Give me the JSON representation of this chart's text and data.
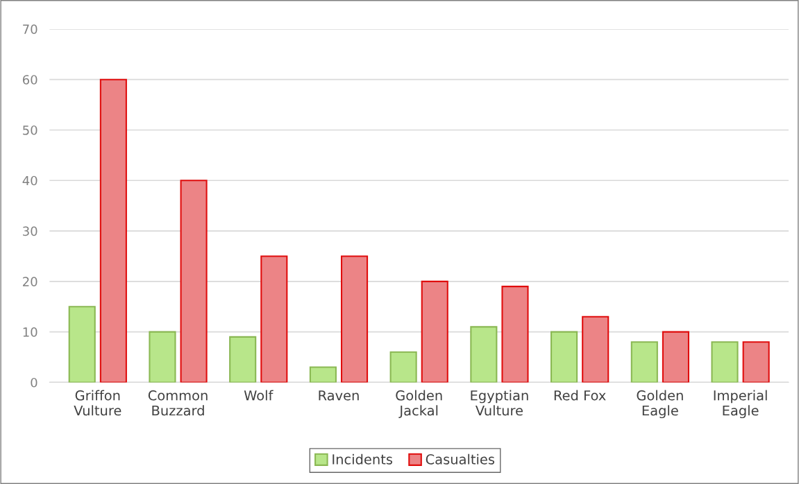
{
  "chart_data": {
    "type": "bar",
    "categories": [
      "Griffon\nVulture",
      "Common\nBuzzard",
      "Wolf",
      "Raven",
      "Golden\nJackal",
      "Egyptian\nVulture",
      "Red Fox",
      "Golden\nEagle",
      "Imperial\nEagle"
    ],
    "series": [
      {
        "name": "Incidents",
        "color": "#b8e68a",
        "values": [
          15,
          10,
          9,
          3,
          6,
          11,
          10,
          8,
          8
        ]
      },
      {
        "name": "Casualties",
        "color": "#ec8486",
        "values": [
          60,
          40,
          25,
          25,
          20,
          19,
          13,
          10,
          8
        ]
      }
    ],
    "ylim": [
      0,
      70
    ],
    "yticks": [
      0,
      10,
      20,
      30,
      40,
      50,
      60,
      70
    ],
    "grid": "y",
    "legend": "bottom"
  }
}
